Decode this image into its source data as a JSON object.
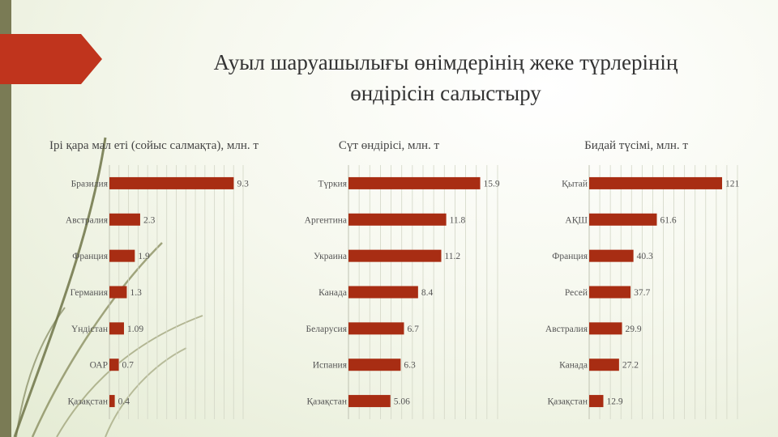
{
  "slide": {
    "title_line1": "Ауыл шаруашылығы өнімдерінің жеке түрлерінің",
    "title_line2": "өндірісін салыстыру",
    "accent_color": "#c0341d",
    "bar_color": "#a82d13",
    "stripe_color": "#7a7b55"
  },
  "chart_data": [
    {
      "type": "bar",
      "orientation": "horizontal",
      "title": "Ірі қара мал еті (сойыс салмақта), млн. т",
      "categories": [
        "Бразилия",
        "Австралия",
        "Франция",
        "Германия",
        "Үндістан",
        "ОАР",
        "Қазақстан"
      ],
      "values": [
        9.3,
        2.3,
        1.9,
        1.3,
        1.09,
        0.7,
        0.4
      ],
      "value_labels": [
        "9.3",
        "2.3",
        "1.9",
        "1.3",
        "1.09",
        "0.7",
        "0.4"
      ],
      "xlim": [
        0,
        10
      ],
      "grid": true
    },
    {
      "type": "bar",
      "orientation": "horizontal",
      "title": "Сүт өндірісі, млн. т",
      "categories": [
        "Түркия",
        "Аргентина",
        "Украина",
        "Канада",
        "Беларусия",
        "Испания",
        "Қазақстан"
      ],
      "values": [
        15.9,
        11.8,
        11.2,
        8.4,
        6.7,
        6.3,
        5.06
      ],
      "value_labels": [
        "15.9",
        "11.8",
        "11.2",
        "8.4",
        "6.7",
        "6.3",
        "5.06"
      ],
      "xlim": [
        0,
        18
      ],
      "grid": true
    },
    {
      "type": "bar",
      "orientation": "horizontal",
      "title": "Бидай түсімі, млн. т",
      "categories": [
        "Қытай",
        "АҚШ",
        "Франция",
        "Ресей",
        "Австралия",
        "Канада",
        "Қазақстан"
      ],
      "values": [
        121,
        61.6,
        40.3,
        37.7,
        29.9,
        27.2,
        12.9
      ],
      "value_labels": [
        "121",
        "61.6",
        "40.3",
        "37.7",
        "29.9",
        "27.2",
        "12.9"
      ],
      "xlim": [
        0,
        135
      ],
      "grid": true
    }
  ]
}
